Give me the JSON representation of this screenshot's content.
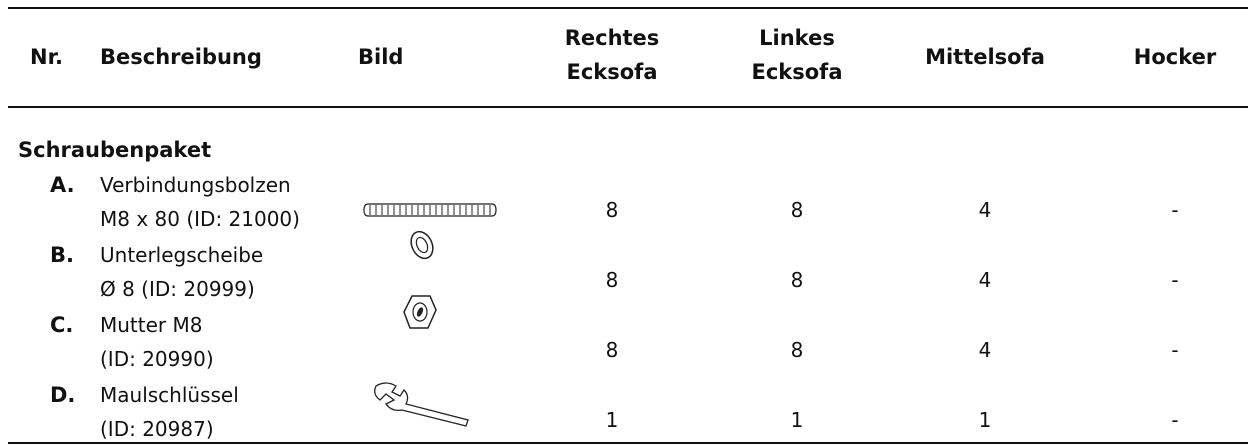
{
  "table": {
    "headers": [
      [
        "Nr."
      ],
      [
        "Beschreibung"
      ],
      [
        "Bild"
      ],
      [
        "Rechtes",
        "Ecksofa"
      ],
      [
        "Linkes",
        "Ecksofa"
      ],
      [
        "Mittelsofa"
      ],
      [
        "Hocker"
      ]
    ],
    "section": "Schraubenpaket",
    "rows": [
      {
        "label": "A.",
        "description": [
          "Verbindungsbolzen",
          "M8 x 80 (ID: 21000)"
        ],
        "counts": [
          8,
          8,
          4,
          "-"
        ]
      },
      {
        "label": "B.",
        "description": [
          "Unterlegscheibe",
          "Ø 8 (ID: 20999)"
        ],
        "counts": [
          8,
          8,
          4,
          "-"
        ]
      },
      {
        "label": "C.",
        "description": [
          "Mutter M8",
          "(ID: 20990)"
        ],
        "counts": [
          8,
          8,
          4,
          "-"
        ]
      },
      {
        "label": "D.",
        "description": [
          "Maulschlüssel",
          "(ID: 20987)"
        ],
        "counts": [
          1,
          1,
          1,
          "-"
        ]
      }
    ]
  }
}
